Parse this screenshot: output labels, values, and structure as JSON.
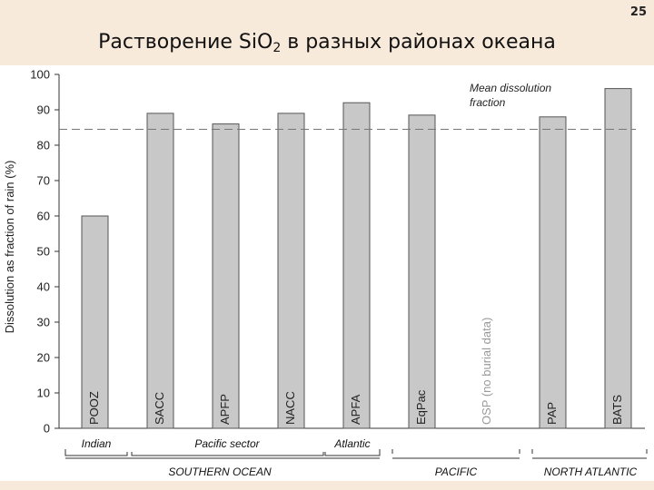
{
  "page_number": "25",
  "title": {
    "prefix": "Растворение SiO",
    "subscript": "2",
    "suffix": " в разных районах океана"
  },
  "chart_data": {
    "type": "bar",
    "categories": [
      "POOZ",
      "SACC",
      "APFP",
      "NACC",
      "APFA",
      "EqPac",
      "OSP (no burial data)",
      "PAP",
      "BATS"
    ],
    "values": [
      60,
      89,
      86,
      89,
      92,
      88.5,
      null,
      88,
      96
    ],
    "ylabel": "Dissolution as fraction of rain (%)",
    "ylim": [
      0,
      100
    ],
    "yticks": [
      0,
      10,
      20,
      30,
      40,
      50,
      60,
      70,
      80,
      90,
      100
    ],
    "mean_line": {
      "value": 84.5,
      "label_line1": "Mean dissolution",
      "label_line2": "fraction"
    },
    "groups_top": [
      "Indian",
      "Pacific sector",
      "Atlantic"
    ],
    "groups_bottom": [
      "SOUTHERN OCEAN",
      "PACIFIC",
      "NORTH ATLANTIC"
    ],
    "colors": {
      "bar_fill": "#c8c8c8",
      "bar_stroke": "#555555",
      "mean_line": "#777777"
    }
  }
}
